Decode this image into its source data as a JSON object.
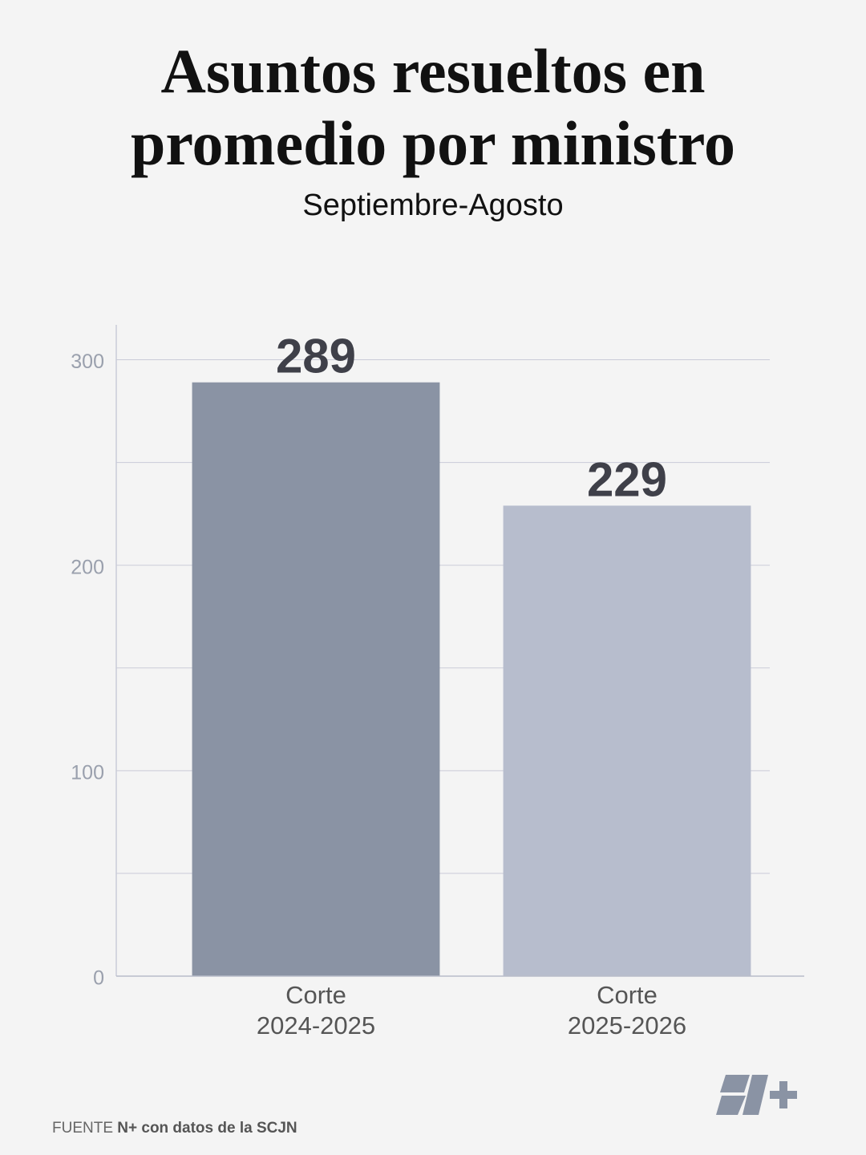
{
  "chart_data": {
    "type": "bar",
    "title": [
      "Asuntos resueltos en",
      "promedio por ministro"
    ],
    "subtitle": "Septiembre-Agosto",
    "categories": [
      "Corte\n2024-2025",
      "Corte\n2025-2026"
    ],
    "values": [
      289,
      229
    ],
    "colors": [
      "#8a93a4",
      "#b7bdcd"
    ],
    "ylim": [
      0,
      317
    ],
    "yticks": [
      0,
      100,
      200,
      300
    ],
    "minor_yticks": [
      50,
      150,
      250
    ],
    "grid": true
  },
  "source": {
    "label": "FUENTE",
    "text": "N+ con datos de la SCJN"
  }
}
